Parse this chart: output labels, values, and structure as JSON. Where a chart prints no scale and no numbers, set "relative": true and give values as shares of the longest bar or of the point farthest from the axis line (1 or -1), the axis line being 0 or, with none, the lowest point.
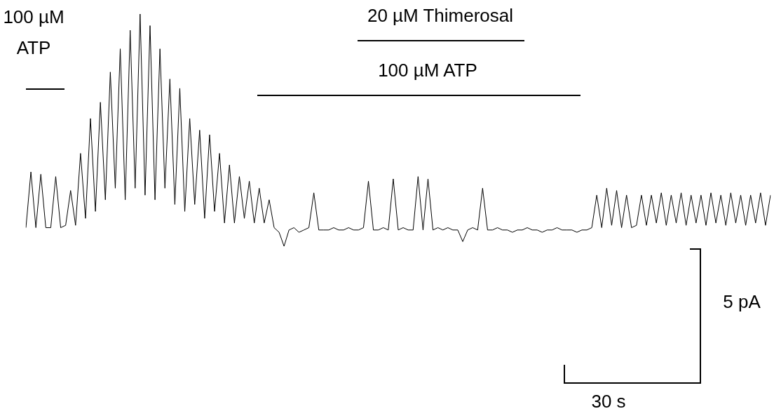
{
  "chart_data": {
    "type": "line",
    "relative": true,
    "legend": false,
    "marker": "none",
    "line_style": "solid",
    "annotations": [
      "100 µM ATP",
      "20 µM Thimerosal",
      "100 µM ATP",
      "5 pA",
      "30 s"
    ],
    "categories": [
      null,
      null,
      null,
      null,
      null,
      null,
      null,
      null,
      null,
      null,
      null,
      null,
      null,
      null,
      null,
      null,
      null,
      null,
      null,
      null,
      null,
      null,
      null,
      null,
      null,
      null,
      null,
      null,
      null,
      null,
      null,
      null,
      null,
      null,
      null,
      null,
      null,
      null,
      null,
      null,
      null,
      null,
      null,
      null,
      null,
      null,
      null,
      null,
      null,
      null,
      null,
      null,
      null,
      null,
      null,
      null,
      null,
      null,
      null,
      null,
      null,
      null,
      null,
      null,
      null,
      null,
      null,
      null,
      null,
      null,
      null,
      null,
      null,
      null,
      null,
      null,
      null,
      null,
      null,
      null,
      null,
      null,
      null,
      null,
      null,
      null,
      null,
      null,
      null,
      null,
      null,
      null,
      null,
      null,
      null,
      null,
      null,
      null,
      null,
      null,
      null,
      null,
      null,
      null,
      null,
      null,
      null,
      null,
      null,
      null,
      null,
      null,
      null,
      null,
      null,
      null,
      null,
      null,
      null,
      null,
      null,
      null,
      null,
      null,
      null,
      null,
      null,
      null,
      null,
      null,
      null,
      null,
      null,
      null,
      null,
      null,
      null,
      null,
      null,
      null,
      null,
      null,
      null,
      null,
      null,
      null,
      null,
      null,
      null,
      null,
      null
    ],
    "series": [
      {
        "color": "#000000",
        "values": [
          0.08,
          0.32,
          0.08,
          0.31,
          0.08,
          0.08,
          0.3,
          0.08,
          0.09,
          0.24,
          0.09,
          0.4,
          0.12,
          0.55,
          0.15,
          0.62,
          0.2,
          0.75,
          0.25,
          0.85,
          0.2,
          0.93,
          0.25,
          1.0,
          0.22,
          0.95,
          0.2,
          0.85,
          0.25,
          0.72,
          0.18,
          0.68,
          0.15,
          0.55,
          0.18,
          0.5,
          0.12,
          0.48,
          0.15,
          0.4,
          0.1,
          0.35,
          0.1,
          0.3,
          0.12,
          0.28,
          0.1,
          0.25,
          0.1,
          0.2,
          0.08,
          0.06,
          0.0,
          0.07,
          0.08,
          0.06,
          0.07,
          0.08,
          0.23,
          0.07,
          0.07,
          0.07,
          0.08,
          0.07,
          0.07,
          0.08,
          0.07,
          0.07,
          0.08,
          0.28,
          0.07,
          0.07,
          0.08,
          0.07,
          0.29,
          0.07,
          0.08,
          0.07,
          0.07,
          0.3,
          0.07,
          0.29,
          0.07,
          0.08,
          0.07,
          0.08,
          0.07,
          0.07,
          0.02,
          0.07,
          0.08,
          0.07,
          0.25,
          0.07,
          0.07,
          0.08,
          0.07,
          0.07,
          0.06,
          0.07,
          0.07,
          0.08,
          0.07,
          0.07,
          0.06,
          0.07,
          0.07,
          0.08,
          0.07,
          0.07,
          0.07,
          0.06,
          0.07,
          0.07,
          0.08,
          0.22,
          0.08,
          0.25,
          0.09,
          0.24,
          0.08,
          0.22,
          0.08,
          0.09,
          0.22,
          0.09,
          0.22,
          0.1,
          0.23,
          0.09,
          0.22,
          0.1,
          0.23,
          0.09,
          0.22,
          0.1,
          0.22,
          0.09,
          0.23,
          0.1,
          0.22,
          0.09,
          0.23,
          0.1,
          0.22,
          0.09,
          0.22,
          0.1,
          0.23,
          0.09,
          0.22
        ]
      }
    ]
  }
}
